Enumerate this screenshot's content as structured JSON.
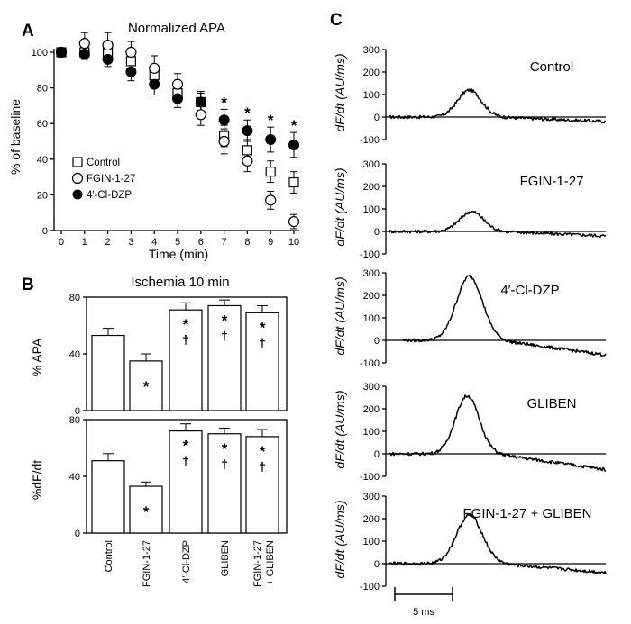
{
  "panels": {
    "a": "A",
    "b": "B",
    "c": "C"
  },
  "chart_data": [
    {
      "id": "A",
      "type": "scatter",
      "title": "Normalized APA",
      "xlabel": "Time (min)",
      "ylabel": "% of baseline",
      "xlim": [
        0,
        10
      ],
      "ylim": [
        0,
        100
      ],
      "xticks": [
        "0",
        "1",
        "2",
        "3",
        "4",
        "5",
        "6",
        "7",
        "8",
        "9",
        "10"
      ],
      "yticks": [
        "0",
        "20",
        "40",
        "60",
        "80",
        "100"
      ],
      "x": [
        0,
        1,
        2,
        3,
        4,
        5,
        6,
        7,
        8,
        9,
        10
      ],
      "series": [
        {
          "name": "Control",
          "marker": "open-square",
          "values": [
            100,
            100,
            100,
            95,
            87,
            77,
            72,
            53,
            45,
            33,
            27
          ],
          "err": [
            0,
            4,
            5,
            4,
            5,
            5,
            5,
            6,
            6,
            6,
            6
          ]
        },
        {
          "name": "FGIN-1-27",
          "marker": "open-circle",
          "values": [
            100,
            105,
            104,
            100,
            91,
            82,
            65,
            50,
            39,
            17,
            5
          ],
          "err": [
            0,
            6,
            7,
            6,
            7,
            6,
            6,
            7,
            6,
            5,
            4
          ]
        },
        {
          "name": "4′-Cl-DZP",
          "marker": "filled-circle",
          "values": [
            100,
            99,
            96,
            89,
            82,
            74,
            72,
            62,
            56,
            51,
            48
          ],
          "err": [
            0,
            3,
            4,
            5,
            6,
            5,
            6,
            6,
            6,
            7,
            7
          ]
        }
      ],
      "star_symbol": "*",
      "stars_at_x": [
        7,
        8,
        9,
        10
      ],
      "legend_position": "lower-left"
    },
    {
      "id": "B",
      "type": "bar",
      "title": "Ischemia  10 min",
      "categories": [
        "Control",
        "FGIN-1-27",
        "4′-Cl-DZP",
        "GLIBEN",
        "FGIN-1-27",
        "+ GLIBEN"
      ],
      "star_symbol": "*",
      "dagger_symbol": "†",
      "subplots": [
        {
          "ylabel": "% APA",
          "ylim": [
            0,
            80
          ],
          "yticks": [
            "0",
            "40",
            "80"
          ],
          "values": [
            53,
            35,
            71,
            74,
            69
          ],
          "err": [
            5,
            5,
            5,
            4,
            5
          ],
          "marks": [
            "",
            "*",
            "*†",
            "*†",
            "*†"
          ]
        },
        {
          "ylabel": "%dF/dt",
          "ylim": [
            0,
            80
          ],
          "yticks": [
            "0",
            "40",
            "80"
          ],
          "values": [
            51,
            33,
            72,
            70,
            68
          ],
          "err": [
            5,
            3,
            5,
            4,
            5
          ],
          "marks": [
            "",
            "*",
            "*†",
            "*†",
            "*†"
          ]
        }
      ]
    },
    {
      "id": "C",
      "type": "line",
      "ylabel": "dF/dt (AU/ms)",
      "ylim": [
        -100,
        300
      ],
      "yticks": [
        "-100",
        "0",
        "100",
        "200",
        "300"
      ],
      "scale_bar": "5 ms",
      "series": [
        {
          "name": "Control",
          "peak": 120,
          "start": 0.25,
          "center": 0.37,
          "width": 0.055,
          "tail": -20
        },
        {
          "name": "FGIN-1-27",
          "peak": 88,
          "start": 0.27,
          "center": 0.38,
          "width": 0.055,
          "tail": -20
        },
        {
          "name": "4′-Cl-DZP",
          "peak": 285,
          "start": 0.24,
          "center": 0.37,
          "width": 0.06,
          "tail": -65
        },
        {
          "name": "GLIBEN",
          "peak": 258,
          "start": 0.24,
          "center": 0.36,
          "width": 0.055,
          "tail": -70
        },
        {
          "name": "FGIN-1-27 + GLIBEN",
          "peak": 215,
          "start": 0.24,
          "center": 0.37,
          "width": 0.06,
          "tail": -40
        }
      ]
    }
  ]
}
